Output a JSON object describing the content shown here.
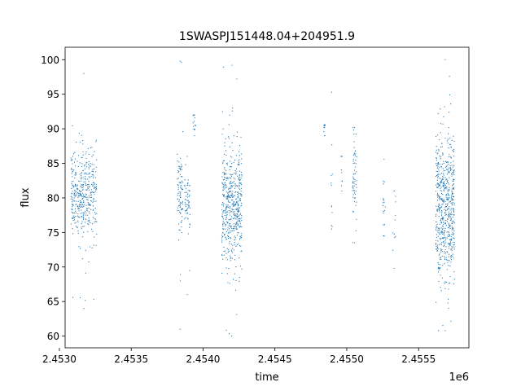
{
  "chart_data": {
    "type": "scatter",
    "title": "1SWASPJ151448.04+204951.9",
    "xlabel": "time",
    "ylabel": "flux",
    "x_offset_text": "1e6",
    "xlim": [
      2.45304,
      2.45585
    ],
    "ylim": [
      58.3,
      101.8
    ],
    "grid": false,
    "legend": "none",
    "series_color": "#1f77b4",
    "x_ticks": [
      {
        "value": 2.453,
        "label": "2.4530"
      },
      {
        "value": 2.4535,
        "label": "2.4535"
      },
      {
        "value": 2.454,
        "label": "2.4540"
      },
      {
        "value": 2.4545,
        "label": "2.4545"
      },
      {
        "value": 2.455,
        "label": "2.4550"
      },
      {
        "value": 2.4555,
        "label": "2.4555"
      }
    ],
    "y_ticks": [
      {
        "value": 60,
        "label": "60"
      },
      {
        "value": 65,
        "label": "65"
      },
      {
        "value": 70,
        "label": "70"
      },
      {
        "value": 75,
        "label": "75"
      },
      {
        "value": 80,
        "label": "80"
      },
      {
        "value": 85,
        "label": "85"
      },
      {
        "value": 90,
        "label": "90"
      },
      {
        "value": 95,
        "label": "95"
      },
      {
        "value": 100,
        "label": "100"
      }
    ],
    "observation_seasons": [
      {
        "x_start": 2.45308,
        "x_end": 2.45326,
        "flux_center": 80.5,
        "flux_spread": 3.2,
        "flux_min": 64.0,
        "flux_max": 98.0,
        "density": 420
      },
      {
        "x_start": 2.45382,
        "x_end": 2.45386,
        "flux_center": 81.0,
        "flux_spread": 2.5,
        "flux_min": 61.0,
        "flux_max": 99.8,
        "density": 90
      },
      {
        "x_start": 2.45387,
        "x_end": 2.45391,
        "flux_center": 79.5,
        "flux_spread": 2.0,
        "flux_min": 66.0,
        "flux_max": 86.0,
        "density": 60
      },
      {
        "x_start": 2.45393,
        "x_end": 2.45395,
        "flux_center": 90.5,
        "flux_spread": 0.8,
        "flux_min": 89.0,
        "flux_max": 92.0,
        "density": 14
      },
      {
        "x_start": 2.45413,
        "x_end": 2.45427,
        "flux_center": 79.5,
        "flux_spread": 4.2,
        "flux_min": 60.0,
        "flux_max": 99.2,
        "density": 520
      },
      {
        "x_start": 2.45484,
        "x_end": 2.45485,
        "flux_center": 89.8,
        "flux_spread": 0.6,
        "flux_min": 89.0,
        "flux_max": 90.6,
        "density": 8
      },
      {
        "x_start": 2.45489,
        "x_end": 2.4549,
        "flux_center": 80.5,
        "flux_spread": 2.5,
        "flux_min": 75.5,
        "flux_max": 95.3,
        "density": 10
      },
      {
        "x_start": 2.45496,
        "x_end": 2.45497,
        "flux_center": 84.0,
        "flux_spread": 2.0,
        "flux_min": 81.0,
        "flux_max": 86.0,
        "density": 8
      },
      {
        "x_start": 2.45504,
        "x_end": 2.45507,
        "flux_center": 83.0,
        "flux_spread": 3.5,
        "flux_min": 73.5,
        "flux_max": 90.2,
        "density": 60
      },
      {
        "x_start": 2.45525,
        "x_end": 2.45527,
        "flux_center": 79.0,
        "flux_spread": 2.0,
        "flux_min": 74.5,
        "flux_max": 85.6,
        "density": 18
      },
      {
        "x_start": 2.45532,
        "x_end": 2.45534,
        "flux_center": 76.5,
        "flux_spread": 2.0,
        "flux_min": 69.8,
        "flux_max": 81.0,
        "density": 10
      },
      {
        "x_start": 2.45562,
        "x_end": 2.45575,
        "flux_center": 79.0,
        "flux_spread": 5.0,
        "flux_min": 60.8,
        "flux_max": 100.0,
        "density": 620
      }
    ]
  }
}
